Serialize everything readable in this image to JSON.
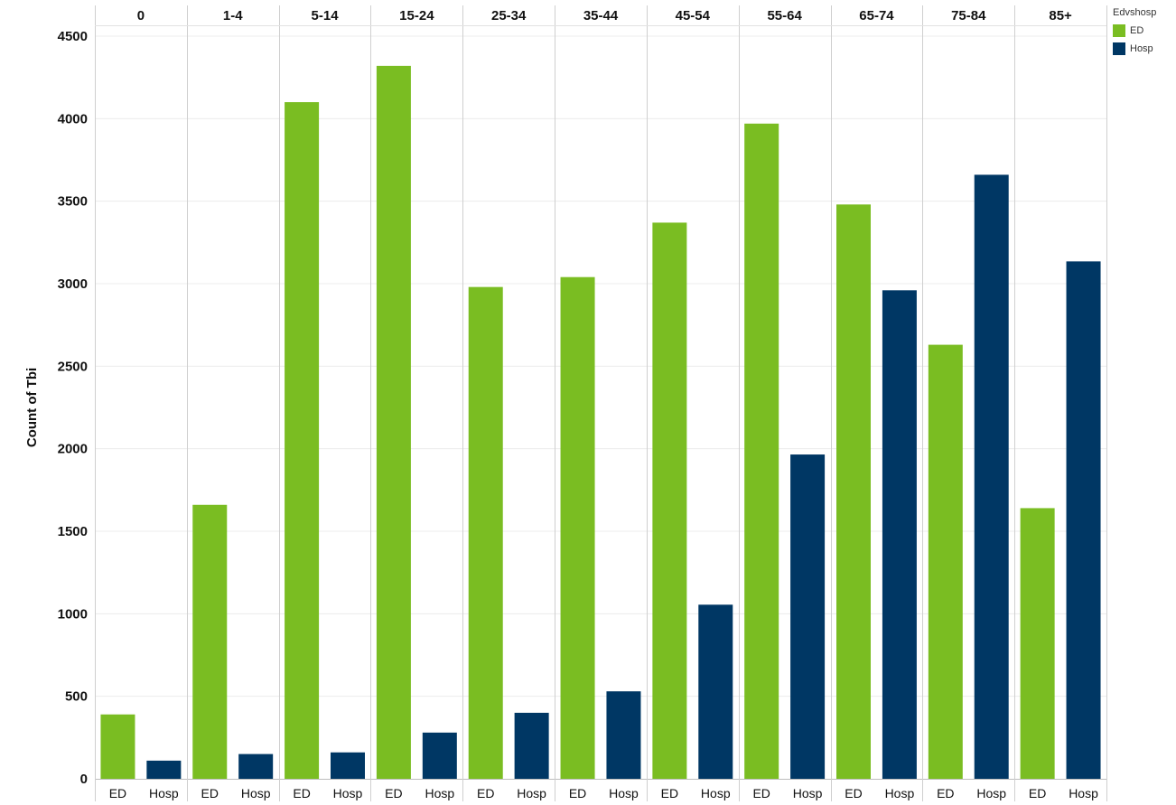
{
  "chart_data": {
    "type": "bar",
    "ylabel": "Count of Tbi",
    "ylim": [
      0,
      4500
    ],
    "yticks": [
      0,
      500,
      1000,
      1500,
      2000,
      2500,
      3000,
      3500,
      4000,
      4500
    ],
    "categories": [
      "0",
      "1-4",
      "5-14",
      "15-24",
      "25-34",
      "35-44",
      "45-54",
      "55-64",
      "65-74",
      "75-84",
      "85+"
    ],
    "legend": {
      "title": "Edvshosp",
      "placement": "top-right"
    },
    "grid": true,
    "series": [
      {
        "name": "ED",
        "color": "#7ABD22",
        "values": [
          390,
          1660,
          4100,
          4320,
          2980,
          3040,
          3370,
          3970,
          3480,
          2630,
          1640
        ]
      },
      {
        "name": "Hosp",
        "color": "#003764",
        "values": [
          110,
          150,
          160,
          280,
          400,
          530,
          1055,
          1965,
          2960,
          3660,
          3135
        ]
      }
    ]
  }
}
